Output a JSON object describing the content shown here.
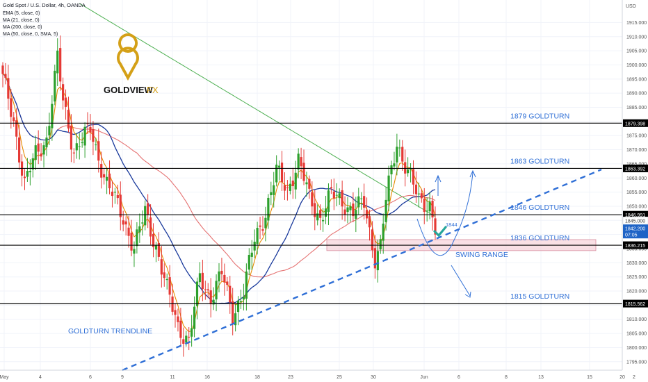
{
  "header": {
    "title": "Gold Spot / U.S. Dollar, 4h, OANDA",
    "indicators": [
      "EMA (5, close, 0)",
      "MA (21, close, 0)",
      "MA (200, close, 0)",
      "MA (50, close, 0, SMA, 5)"
    ]
  },
  "logo": {
    "brand": "GOLDVIEW",
    "suffix": "FX",
    "color": "#d4a017"
  },
  "currency": "USD",
  "colors": {
    "up": "#2ca02c",
    "down": "#e53935",
    "ema5": "#e68a00",
    "ma21": "#1a3a9c",
    "ma200": "#4caf50",
    "ma50": "#e57373",
    "annotation": "#2f6fd6",
    "swing_zone": "#f4c6cf",
    "check": "#26a69a"
  },
  "chart_data": {
    "type": "candlestick",
    "title": "Gold Spot / U.S. Dollar, 4h, OANDA",
    "ylim": [
      1792,
      1921
    ],
    "y_ticks": [
      1795,
      1800,
      1805,
      1810,
      1815,
      1820,
      1825,
      1830,
      1835,
      1840,
      1845,
      1850,
      1855,
      1860,
      1865,
      1870,
      1875,
      1880,
      1885,
      1890,
      1895,
      1900,
      1905,
      1910,
      1915
    ],
    "x_ticks": [
      "May",
      "4",
      "6",
      "9",
      "11",
      "16",
      "18",
      "23",
      "25",
      "30",
      "Jun",
      "6",
      "8",
      "13",
      "15",
      "20",
      "2"
    ],
    "price_anchors": [
      [
        0,
        1895
      ],
      [
        4,
        1880
      ],
      [
        8,
        1858
      ],
      [
        12,
        1868
      ],
      [
        16,
        1874
      ],
      [
        20,
        1902
      ],
      [
        22,
        1887
      ],
      [
        26,
        1870
      ],
      [
        32,
        1877
      ],
      [
        38,
        1858
      ],
      [
        44,
        1846
      ],
      [
        48,
        1835
      ],
      [
        52,
        1848
      ],
      [
        56,
        1836
      ],
      [
        60,
        1820
      ],
      [
        64,
        1808
      ],
      [
        68,
        1802
      ],
      [
        72,
        1825
      ],
      [
        76,
        1818
      ],
      [
        80,
        1826
      ],
      [
        84,
        1812
      ],
      [
        88,
        1820
      ],
      [
        92,
        1838
      ],
      [
        96,
        1848
      ],
      [
        100,
        1862
      ],
      [
        104,
        1856
      ],
      [
        108,
        1866
      ],
      [
        112,
        1853
      ],
      [
        116,
        1846
      ],
      [
        120,
        1854
      ],
      [
        124,
        1852
      ],
      [
        128,
        1848
      ],
      [
        132,
        1851
      ],
      [
        136,
        1832
      ],
      [
        138,
        1836
      ],
      [
        140,
        1852
      ],
      [
        144,
        1873
      ],
      [
        148,
        1862
      ],
      [
        152,
        1852
      ],
      [
        156,
        1851
      ],
      [
        158,
        1842
      ]
    ],
    "series": [
      {
        "name": "EMA (5, close, 0)",
        "kind": "ema",
        "period": 5
      },
      {
        "name": "MA (21, close, 0)",
        "kind": "sma",
        "period": 21
      },
      {
        "name": "MA (200, close, 0)",
        "kind": "sma200"
      },
      {
        "name": "MA (50, close, 0, SMA, 5)",
        "kind": "sma",
        "period": 50
      }
    ],
    "levels": [
      {
        "value": 1879.398,
        "label": "1879 GOLDTURN",
        "tag": "1879.398"
      },
      {
        "value": 1863.392,
        "label": "1863 GOLDTURN",
        "tag": "1863.392"
      },
      {
        "value": 1846.991,
        "label": "1846 GOLDTURN",
        "tag": "1846.991"
      },
      {
        "value": 1836.215,
        "label": "1836 GOLDTURN",
        "tag": "1836.215"
      },
      {
        "value": 1815.562,
        "label": "1815 GOLDTURN",
        "tag": "1815.562"
      }
    ],
    "trendline": {
      "label": "GOLDTURN TRENDLINE",
      "from": [
        "9",
        1792
      ],
      "to": [
        "20",
        1863
      ]
    },
    "swing_range": {
      "label": "SWING RANGE",
      "low": 1834.3,
      "high": 1838.2
    },
    "small_note": "1844",
    "current_price": {
      "value": "1842.200",
      "countdown": "07:05"
    },
    "secondary_tag": "1845.000"
  }
}
